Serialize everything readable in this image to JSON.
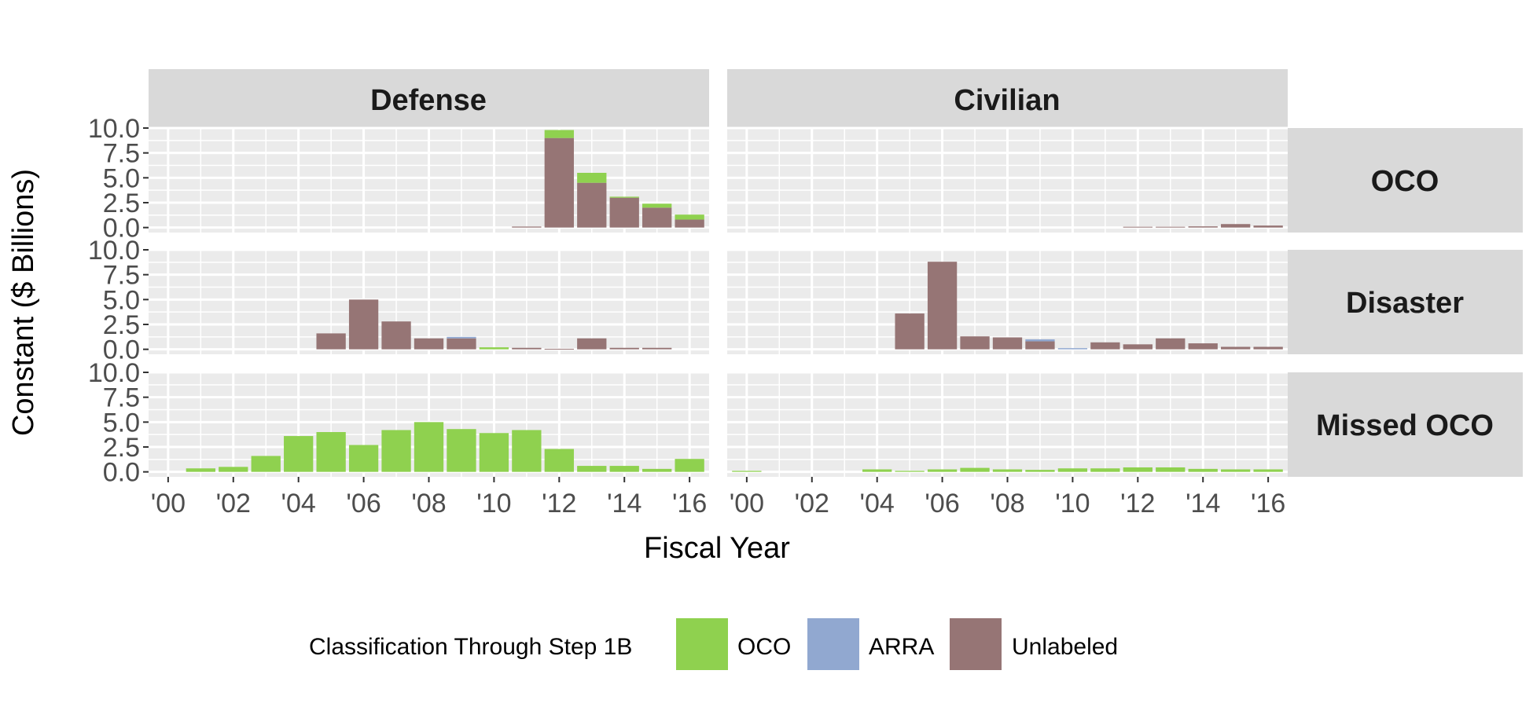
{
  "chart_data": {
    "type": "bar",
    "stacked": true,
    "facet_columns": [
      "Defense",
      "Civilian"
    ],
    "facet_rows": [
      "OCO",
      "Disaster",
      "Missed OCO"
    ],
    "xlabel": "Fiscal Year",
    "ylabel": "Constant ($ Billions)",
    "x": [
      2000,
      2001,
      2002,
      2003,
      2004,
      2005,
      2006,
      2007,
      2008,
      2009,
      2010,
      2011,
      2012,
      2013,
      2014,
      2015,
      2016
    ],
    "x_ticks": [
      2000,
      2002,
      2004,
      2006,
      2008,
      2010,
      2012,
      2014,
      2016
    ],
    "x_tick_labels": [
      "'00",
      "'02",
      "'04",
      "'06",
      "'08",
      "'10",
      "'12",
      "'14",
      "'16"
    ],
    "y_ticks": [
      "0.0",
      "2.5",
      "5.0",
      "7.5",
      "10.0"
    ],
    "ylim": [
      -0.5,
      10.0
    ],
    "xlim": [
      1999.4,
      2016.6
    ],
    "grid": true,
    "legend_title": "Classification Through Step 1B",
    "legend_position": "bottom",
    "series_order": [
      "Unlabeled",
      "ARRA",
      "OCO"
    ],
    "series_colors": {
      "OCO": "#8fd14f",
      "ARRA": "#91a8d0",
      "Unlabeled": "#967575"
    },
    "panels": [
      {
        "row": "OCO",
        "column": "Defense",
        "series": [
          {
            "name": "Unlabeled",
            "values": [
              0,
              0,
              0,
              0,
              0,
              0,
              0,
              0,
              0,
              0,
              0,
              0.1,
              9.0,
              4.5,
              3.0,
              2.0,
              0.8
            ]
          },
          {
            "name": "ARRA",
            "values": [
              0,
              0,
              0,
              0,
              0,
              0,
              0,
              0,
              0,
              0,
              0,
              0,
              0,
              0,
              0,
              0,
              0
            ]
          },
          {
            "name": "OCO",
            "values": [
              0,
              0,
              0,
              0,
              0,
              0,
              0,
              0,
              0,
              0,
              0,
              0,
              0.8,
              1.0,
              0.1,
              0.4,
              0.5
            ]
          }
        ]
      },
      {
        "row": "OCO",
        "column": "Civilian",
        "series": [
          {
            "name": "Unlabeled",
            "values": [
              0,
              0,
              0,
              0,
              0,
              0,
              0,
              0,
              0,
              0,
              0,
              0,
              0.08,
              0.08,
              0.12,
              0.35,
              0.2
            ]
          },
          {
            "name": "ARRA",
            "values": [
              0,
              0,
              0,
              0,
              0,
              0,
              0,
              0,
              0,
              0,
              0,
              0,
              0,
              0,
              0,
              0,
              0
            ]
          },
          {
            "name": "OCO",
            "values": [
              0,
              0,
              0,
              0,
              0,
              0,
              0,
              0,
              0,
              0,
              0,
              0,
              0,
              0,
              0,
              0,
              0
            ]
          }
        ]
      },
      {
        "row": "Disaster",
        "column": "Defense",
        "series": [
          {
            "name": "Unlabeled",
            "values": [
              0,
              0,
              0,
              0,
              0,
              1.6,
              5.0,
              2.8,
              1.1,
              1.1,
              0,
              0.15,
              0.05,
              1.1,
              0.15,
              0.15,
              0
            ]
          },
          {
            "name": "ARRA",
            "values": [
              0,
              0,
              0,
              0,
              0,
              0,
              0,
              0,
              0,
              0.15,
              0,
              0,
              0,
              0,
              0,
              0,
              0
            ]
          },
          {
            "name": "OCO",
            "values": [
              0,
              0,
              0,
              0,
              0,
              0,
              0,
              0,
              0,
              0,
              0.2,
              0,
              0,
              0,
              0,
              0,
              0
            ]
          }
        ]
      },
      {
        "row": "Disaster",
        "column": "Civilian",
        "series": [
          {
            "name": "Unlabeled",
            "values": [
              0,
              0,
              0,
              0,
              0,
              3.6,
              8.8,
              1.3,
              1.2,
              0.8,
              0,
              0.7,
              0.5,
              1.1,
              0.6,
              0.25,
              0.25
            ]
          },
          {
            "name": "ARRA",
            "values": [
              0,
              0,
              0,
              0,
              0,
              0,
              0,
              0,
              0,
              0.2,
              0.12,
              0,
              0,
              0,
              0,
              0,
              0
            ]
          },
          {
            "name": "OCO",
            "values": [
              0,
              0,
              0,
              0,
              0,
              0,
              0,
              0,
              0,
              0,
              0,
              0,
              0,
              0,
              0,
              0,
              0
            ]
          }
        ]
      },
      {
        "row": "Missed OCO",
        "column": "Defense",
        "series": [
          {
            "name": "Unlabeled",
            "values": [
              0,
              0,
              0,
              0,
              0,
              0,
              0,
              0,
              0,
              0,
              0,
              0,
              0,
              0,
              0,
              0,
              0
            ]
          },
          {
            "name": "ARRA",
            "values": [
              0,
              0,
              0,
              0,
              0,
              0,
              0,
              0,
              0,
              0,
              0,
              0,
              0,
              0,
              0,
              0,
              0
            ]
          },
          {
            "name": "OCO",
            "values": [
              0,
              0.35,
              0.5,
              1.6,
              3.6,
              4.0,
              2.7,
              4.2,
              5.0,
              4.3,
              3.9,
              4.2,
              2.3,
              0.6,
              0.6,
              0.3,
              1.3
            ]
          }
        ]
      },
      {
        "row": "Missed OCO",
        "column": "Civilian",
        "series": [
          {
            "name": "Unlabeled",
            "values": [
              0,
              0,
              0,
              0,
              0,
              0,
              0,
              0,
              0,
              0,
              0,
              0,
              0,
              0,
              0,
              0,
              0
            ]
          },
          {
            "name": "ARRA",
            "values": [
              0,
              0,
              0,
              0,
              0,
              0,
              0,
              0,
              0,
              0,
              0,
              0,
              0,
              0,
              0,
              0,
              0
            ]
          },
          {
            "name": "OCO",
            "values": [
              0.1,
              0,
              0,
              0,
              0.25,
              0.1,
              0.25,
              0.4,
              0.25,
              0.2,
              0.35,
              0.35,
              0.45,
              0.45,
              0.3,
              0.25,
              0.25
            ]
          }
        ]
      }
    ]
  }
}
